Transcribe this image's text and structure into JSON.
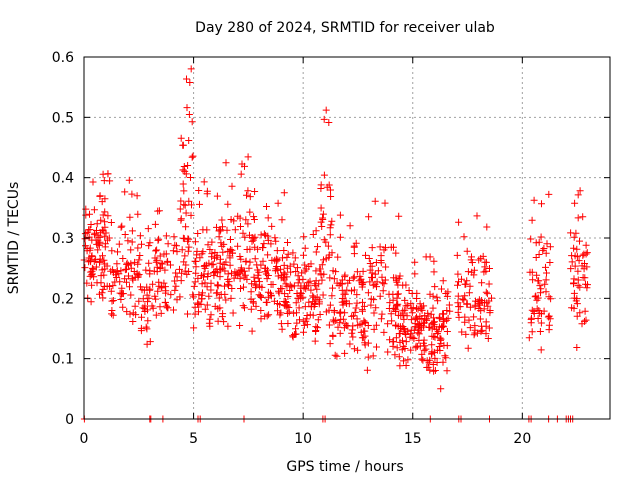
{
  "chart_data": {
    "type": "scatter",
    "title": "Day 280 of 2024, SRMTID for receiver ulab",
    "xlabel": "GPS time / hours",
    "ylabel": "SRMTID / TECUs",
    "xlim": [
      0,
      24
    ],
    "ylim": [
      0,
      0.6
    ],
    "xticks": [
      0,
      5,
      10,
      15,
      20
    ],
    "xtick_labels": [
      "0",
      "5",
      "10",
      "15",
      "20"
    ],
    "yticks": [
      0,
      0.1,
      0.2,
      0.3,
      0.4,
      0.5,
      0.6
    ],
    "ytick_labels": [
      "0",
      "0.1",
      "0.2",
      "0.3",
      "0.4",
      "0.5",
      "0.6"
    ],
    "grid": true,
    "marker": "+",
    "color": "#ff0000",
    "clusters": [
      {
        "x0": 0.0,
        "x1": 1.2,
        "ymin": 0.15,
        "ymax": 0.43,
        "n": 95
      },
      {
        "x0": 1.2,
        "x1": 2.6,
        "ymin": 0.12,
        "ymax": 0.4,
        "n": 75
      },
      {
        "x0": 2.6,
        "x1": 3.2,
        "ymin": 0.07,
        "ymax": 0.32,
        "n": 30
      },
      {
        "x0": 3.2,
        "x1": 4.3,
        "ymin": 0.14,
        "ymax": 0.36,
        "n": 55
      },
      {
        "x0": 4.3,
        "x1": 5.0,
        "ymin": 0.13,
        "ymax": 0.59,
        "n": 50
      },
      {
        "x0": 5.0,
        "x1": 6.2,
        "ymin": 0.1,
        "ymax": 0.4,
        "n": 85
      },
      {
        "x0": 6.2,
        "x1": 7.8,
        "ymin": 0.13,
        "ymax": 0.44,
        "n": 110
      },
      {
        "x0": 7.8,
        "x1": 9.2,
        "ymin": 0.12,
        "ymax": 0.39,
        "n": 95
      },
      {
        "x0": 9.2,
        "x1": 10.8,
        "ymin": 0.1,
        "ymax": 0.33,
        "n": 110
      },
      {
        "x0": 10.8,
        "x1": 11.3,
        "ymin": 0.09,
        "ymax": 0.53,
        "n": 35
      },
      {
        "x0": 11.3,
        "x1": 12.8,
        "ymin": 0.08,
        "ymax": 0.34,
        "n": 95
      },
      {
        "x0": 12.8,
        "x1": 14.4,
        "ymin": 0.05,
        "ymax": 0.37,
        "n": 95
      },
      {
        "x0": 14.4,
        "x1": 15.6,
        "ymin": 0.07,
        "ymax": 0.26,
        "n": 90
      },
      {
        "x0": 15.6,
        "x1": 16.7,
        "ymin": 0.04,
        "ymax": 0.28,
        "n": 80
      },
      {
        "x0": 17.0,
        "x1": 18.6,
        "ymin": 0.1,
        "ymax": 0.34,
        "n": 85
      },
      {
        "x0": 20.3,
        "x1": 21.3,
        "ymin": 0.09,
        "ymax": 0.38,
        "n": 55
      },
      {
        "x0": 22.2,
        "x1": 23.0,
        "ymin": 0.1,
        "ymax": 0.39,
        "n": 50
      }
    ],
    "zero_markers_x": [
      0.02,
      3.0,
      3.05,
      3.6,
      5.2,
      5.3,
      7.3,
      10.9,
      11.0,
      15.8,
      17.1,
      17.2,
      18.5,
      20.3,
      20.4,
      21.2,
      21.6,
      22.0,
      22.1,
      22.2,
      22.3
    ]
  }
}
